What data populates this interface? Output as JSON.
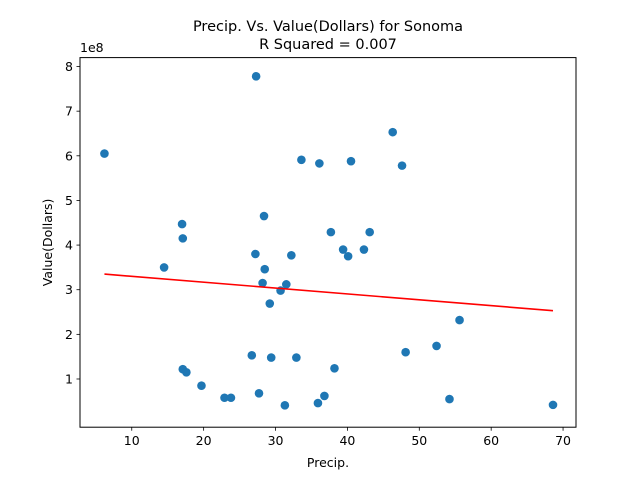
{
  "chart_data": {
    "type": "scatter",
    "title_line1": "Precip. Vs. Value(Dollars) for Sonoma",
    "title_line2": "R Squared =  0.007",
    "xlabel": "Precip.",
    "ylabel": "Value(Dollars)",
    "y_multiplier": "1e8",
    "xlim": [
      2.8,
      71.8
    ],
    "ylim": [
      -0.08,
      8.2
    ],
    "x_ticks": [
      10,
      20,
      30,
      40,
      50,
      60,
      70
    ],
    "y_ticks": [
      1,
      2,
      3,
      4,
      5,
      6,
      7,
      8
    ],
    "series": [
      {
        "marker_color": "#1f77b4",
        "points": [
          [
            6.2,
            6.05
          ],
          [
            14.5,
            3.5
          ],
          [
            17.0,
            4.47
          ],
          [
            17.1,
            4.15
          ],
          [
            17.1,
            1.22
          ],
          [
            17.6,
            1.15
          ],
          [
            19.7,
            0.85
          ],
          [
            22.9,
            0.58
          ],
          [
            23.8,
            0.58
          ],
          [
            26.7,
            1.53
          ],
          [
            27.2,
            3.8
          ],
          [
            27.3,
            7.78
          ],
          [
            27.7,
            0.68
          ],
          [
            28.2,
            3.15
          ],
          [
            28.4,
            4.65
          ],
          [
            28.5,
            3.46
          ],
          [
            29.2,
            2.69
          ],
          [
            29.4,
            1.48
          ],
          [
            30.7,
            2.98
          ],
          [
            31.3,
            0.41
          ],
          [
            31.5,
            3.12
          ],
          [
            32.2,
            3.77
          ],
          [
            32.9,
            1.48
          ],
          [
            33.6,
            5.91
          ],
          [
            35.9,
            0.46
          ],
          [
            36.1,
            5.83
          ],
          [
            36.8,
            0.62
          ],
          [
            37.7,
            4.29
          ],
          [
            38.2,
            1.24
          ],
          [
            39.4,
            3.9
          ],
          [
            40.1,
            3.75
          ],
          [
            40.5,
            5.88
          ],
          [
            42.3,
            3.9
          ],
          [
            43.1,
            4.29
          ],
          [
            46.3,
            6.53
          ],
          [
            47.6,
            5.78
          ],
          [
            48.1,
            1.6
          ],
          [
            52.4,
            1.74
          ],
          [
            54.2,
            0.55
          ],
          [
            55.6,
            2.32
          ],
          [
            68.6,
            0.42
          ]
        ]
      }
    ],
    "regression_line": {
      "color": "#ff0000",
      "x": [
        6.2,
        68.6
      ],
      "y": [
        3.35,
        2.53
      ]
    }
  }
}
